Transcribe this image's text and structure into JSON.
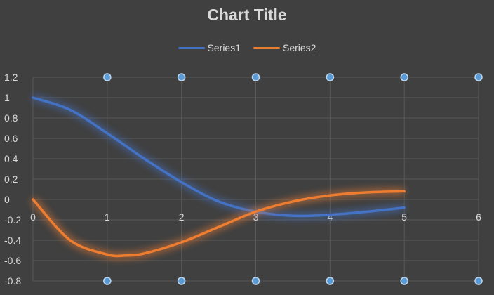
{
  "colors": {
    "background": "#404040",
    "grid": "#595959",
    "text": "#d9d9d9",
    "series1": "#4472c4",
    "series2": "#ed7d31",
    "marker_fill": "#5b9bd5",
    "marker_stroke": "#bdd7ee"
  },
  "chart_data": {
    "type": "scatter",
    "title": "Chart Title",
    "xlabel": "",
    "ylabel": "",
    "xlim": [
      0,
      6
    ],
    "ylim": [
      -0.8,
      1.2
    ],
    "x_ticks": [
      "0",
      "1",
      "2",
      "3",
      "4",
      "5",
      "6"
    ],
    "y_ticks": [
      "1.2",
      "1",
      "0.8",
      "0.6",
      "0.4",
      "0.2",
      "0",
      "-0.2",
      "-0.4",
      "-0.6",
      "-0.8"
    ],
    "grid": true,
    "legend": "top",
    "series": [
      {
        "name": "Series1",
        "style": "smooth-line",
        "x": [
          0,
          0.5,
          1,
          1.5,
          2,
          2.5,
          3,
          3.5,
          4,
          4.5,
          5
        ],
        "y": [
          1.0,
          0.88,
          0.65,
          0.4,
          0.17,
          -0.02,
          -0.12,
          -0.16,
          -0.15,
          -0.12,
          -0.08
        ]
      },
      {
        "name": "Series2",
        "style": "smooth-line",
        "x": [
          0,
          0.5,
          1,
          1.25,
          1.5,
          2,
          2.5,
          3,
          3.5,
          4,
          4.5,
          5
        ],
        "y": [
          0.0,
          -0.4,
          -0.54,
          -0.55,
          -0.53,
          -0.42,
          -0.27,
          -0.12,
          -0.02,
          0.04,
          0.07,
          0.08
        ]
      },
      {
        "name": "",
        "style": "markers",
        "x": [
          1,
          2,
          3,
          4,
          5,
          6
        ],
        "y": [
          1.2,
          1.2,
          1.2,
          1.2,
          1.2,
          1.2
        ]
      },
      {
        "name": "",
        "style": "markers",
        "x": [
          1,
          2,
          3,
          4,
          5,
          6
        ],
        "y": [
          -0.8,
          -0.8,
          -0.8,
          -0.8,
          -0.8,
          -0.8
        ]
      }
    ]
  }
}
